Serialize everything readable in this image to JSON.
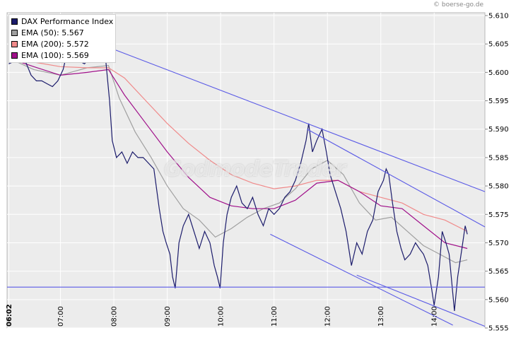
{
  "credit": "© boerse-go.de",
  "watermark": "GodmodeTrader",
  "colors": {
    "price": "#1b1b6b",
    "ema50": "#a0a0a0",
    "ema200": "#f08a8a",
    "ema100": "#a0108a",
    "trendline": "#5a5ae6",
    "background": "#ececec",
    "grid": "#ffffff"
  },
  "legend": [
    {
      "label": "DAX Performance Index",
      "color": "#1b1b6b"
    },
    {
      "label": "EMA (50): 5.567",
      "color": "#a0a0a0"
    },
    {
      "label": "EMA (200): 5.572",
      "color": "#f08a8a"
    },
    {
      "label": "EMA (100): 5.569",
      "color": "#a0108a"
    }
  ],
  "chart_data": {
    "type": "line",
    "title": "",
    "xlabel": "",
    "ylabel": "",
    "ylim": [
      5.555,
      5.6105
    ],
    "grid": true,
    "legend_position": "top-left",
    "x_ticks": [
      "06:02",
      "07:00",
      "08:00",
      "09:00",
      "10:00",
      "11:00",
      "12:00",
      "13:00",
      "14:00"
    ],
    "y_ticks": [
      "5.555",
      "5.560",
      "5.565",
      "5.570",
      "5.575",
      "5.580",
      "5.585",
      "5.590",
      "5.595",
      "5.600",
      "5.605",
      "5.610"
    ],
    "series": [
      {
        "name": "DAX Performance Index",
        "points": [
          [
            6.03,
            5.6015
          ],
          [
            6.15,
            5.602
          ],
          [
            6.25,
            5.603
          ],
          [
            6.35,
            5.6018
          ],
          [
            6.45,
            5.5995
          ],
          [
            6.55,
            5.5985
          ],
          [
            6.65,
            5.5985
          ],
          [
            6.75,
            5.598
          ],
          [
            6.85,
            5.5975
          ],
          [
            6.95,
            5.5985
          ],
          [
            7.05,
            5.6005
          ],
          [
            7.15,
            5.6045
          ],
          [
            7.25,
            5.6035
          ],
          [
            7.35,
            5.602
          ],
          [
            7.45,
            5.6015
          ],
          [
            7.55,
            5.6025
          ],
          [
            7.65,
            5.604
          ],
          [
            7.72,
            5.6045
          ],
          [
            7.78,
            5.603
          ],
          [
            7.85,
            5.602
          ],
          [
            7.92,
            5.595
          ],
          [
            7.97,
            5.588
          ],
          [
            8.05,
            5.585
          ],
          [
            8.15,
            5.586
          ],
          [
            8.25,
            5.584
          ],
          [
            8.35,
            5.586
          ],
          [
            8.45,
            5.585
          ],
          [
            8.55,
            5.585
          ],
          [
            8.65,
            5.584
          ],
          [
            8.75,
            5.583
          ],
          [
            8.85,
            5.576
          ],
          [
            8.92,
            5.572
          ],
          [
            8.98,
            5.57
          ],
          [
            9.05,
            5.568
          ],
          [
            9.1,
            5.564
          ],
          [
            9.15,
            5.562
          ],
          [
            9.22,
            5.57
          ],
          [
            9.3,
            5.573
          ],
          [
            9.4,
            5.575
          ],
          [
            9.5,
            5.572
          ],
          [
            9.6,
            5.569
          ],
          [
            9.7,
            5.572
          ],
          [
            9.8,
            5.57
          ],
          [
            9.88,
            5.566
          ],
          [
            9.94,
            5.564
          ],
          [
            9.99,
            5.562
          ],
          [
            10.05,
            5.57
          ],
          [
            10.12,
            5.575
          ],
          [
            10.2,
            5.578
          ],
          [
            10.3,
            5.58
          ],
          [
            10.4,
            5.577
          ],
          [
            10.5,
            5.576
          ],
          [
            10.6,
            5.578
          ],
          [
            10.7,
            5.575
          ],
          [
            10.8,
            5.573
          ],
          [
            10.9,
            5.576
          ],
          [
            11.0,
            5.575
          ],
          [
            11.1,
            5.576
          ],
          [
            11.2,
            5.578
          ],
          [
            11.3,
            5.579
          ],
          [
            11.4,
            5.581
          ],
          [
            11.5,
            5.584
          ],
          [
            11.6,
            5.588
          ],
          [
            11.65,
            5.591
          ],
          [
            11.72,
            5.586
          ],
          [
            11.8,
            5.588
          ],
          [
            11.9,
            5.59
          ],
          [
            11.98,
            5.586
          ],
          [
            12.05,
            5.582
          ],
          [
            12.15,
            5.579
          ],
          [
            12.25,
            5.576
          ],
          [
            12.35,
            5.572
          ],
          [
            12.45,
            5.566
          ],
          [
            12.55,
            5.57
          ],
          [
            12.65,
            5.568
          ],
          [
            12.75,
            5.572
          ],
          [
            12.85,
            5.574
          ],
          [
            12.95,
            5.579
          ],
          [
            13.05,
            5.581
          ],
          [
            13.1,
            5.583
          ],
          [
            13.15,
            5.582
          ],
          [
            13.22,
            5.577
          ],
          [
            13.3,
            5.572
          ],
          [
            13.38,
            5.569
          ],
          [
            13.45,
            5.567
          ],
          [
            13.55,
            5.568
          ],
          [
            13.65,
            5.57
          ],
          [
            13.72,
            5.569
          ],
          [
            13.8,
            5.568
          ],
          [
            13.88,
            5.566
          ],
          [
            13.95,
            5.562
          ],
          [
            14.0,
            5.559
          ],
          [
            14.08,
            5.564
          ],
          [
            14.15,
            5.572
          ],
          [
            14.22,
            5.57
          ],
          [
            14.28,
            5.568
          ],
          [
            14.34,
            5.562
          ],
          [
            14.38,
            5.558
          ],
          [
            14.44,
            5.564
          ],
          [
            14.52,
            5.569
          ],
          [
            14.58,
            5.573
          ],
          [
            14.62,
            5.5715
          ]
        ]
      },
      {
        "name": "EMA (50)",
        "points": [
          [
            6.03,
            5.6025
          ],
          [
            6.5,
            5.6005
          ],
          [
            7.0,
            5.5995
          ],
          [
            7.5,
            5.6008
          ],
          [
            7.9,
            5.6012
          ],
          [
            8.1,
            5.5955
          ],
          [
            8.4,
            5.5895
          ],
          [
            8.7,
            5.585
          ],
          [
            9.0,
            5.58
          ],
          [
            9.3,
            5.576
          ],
          [
            9.6,
            5.574
          ],
          [
            9.9,
            5.571
          ],
          [
            10.2,
            5.5725
          ],
          [
            10.5,
            5.5745
          ],
          [
            10.8,
            5.576
          ],
          [
            11.1,
            5.577
          ],
          [
            11.4,
            5.5795
          ],
          [
            11.7,
            5.583
          ],
          [
            12.0,
            5.5845
          ],
          [
            12.3,
            5.582
          ],
          [
            12.6,
            5.577
          ],
          [
            12.9,
            5.574
          ],
          [
            13.2,
            5.5745
          ],
          [
            13.5,
            5.572
          ],
          [
            13.8,
            5.5695
          ],
          [
            14.1,
            5.568
          ],
          [
            14.4,
            5.5665
          ],
          [
            14.62,
            5.567
          ]
        ]
      },
      {
        "name": "EMA (200)",
        "points": [
          [
            6.03,
            5.6025
          ],
          [
            6.5,
            5.6018
          ],
          [
            7.0,
            5.601
          ],
          [
            7.5,
            5.6008
          ],
          [
            7.9,
            5.6008
          ],
          [
            8.2,
            5.599
          ],
          [
            8.6,
            5.595
          ],
          [
            9.0,
            5.591
          ],
          [
            9.4,
            5.5875
          ],
          [
            9.8,
            5.5845
          ],
          [
            10.2,
            5.582
          ],
          [
            10.6,
            5.5805
          ],
          [
            11.0,
            5.5795
          ],
          [
            11.4,
            5.58
          ],
          [
            11.8,
            5.581
          ],
          [
            12.2,
            5.581
          ],
          [
            12.6,
            5.579
          ],
          [
            13.0,
            5.578
          ],
          [
            13.4,
            5.577
          ],
          [
            13.8,
            5.575
          ],
          [
            14.2,
            5.574
          ],
          [
            14.62,
            5.572
          ]
        ]
      },
      {
        "name": "EMA (100)",
        "points": [
          [
            6.03,
            5.6025
          ],
          [
            6.5,
            5.601
          ],
          [
            7.0,
            5.5995
          ],
          [
            7.5,
            5.6
          ],
          [
            7.9,
            5.6005
          ],
          [
            8.2,
            5.596
          ],
          [
            8.6,
            5.591
          ],
          [
            9.0,
            5.586
          ],
          [
            9.4,
            5.5815
          ],
          [
            9.8,
            5.578
          ],
          [
            10.2,
            5.5765
          ],
          [
            10.6,
            5.576
          ],
          [
            11.0,
            5.576
          ],
          [
            11.4,
            5.5775
          ],
          [
            11.8,
            5.5805
          ],
          [
            12.2,
            5.581
          ],
          [
            12.6,
            5.579
          ],
          [
            13.0,
            5.5765
          ],
          [
            13.4,
            5.576
          ],
          [
            13.8,
            5.573
          ],
          [
            14.2,
            5.57
          ],
          [
            14.62,
            5.569
          ]
        ]
      }
    ],
    "trendlines": [
      {
        "from": [
          7.82,
          5.6047
        ],
        "to": [
          14.95,
          5.579
        ]
      },
      {
        "from": [
          11.62,
          5.59
        ],
        "to": [
          14.95,
          5.5728
        ]
      },
      {
        "from": [
          10.93,
          5.5715
        ],
        "to": [
          14.35,
          5.5555
        ]
      },
      {
        "from": [
          12.55,
          5.5643
        ],
        "to": [
          14.95,
          5.5553
        ]
      },
      {
        "from": [
          6.0,
          5.5622
        ],
        "to": [
          14.95,
          5.5622
        ]
      }
    ]
  }
}
